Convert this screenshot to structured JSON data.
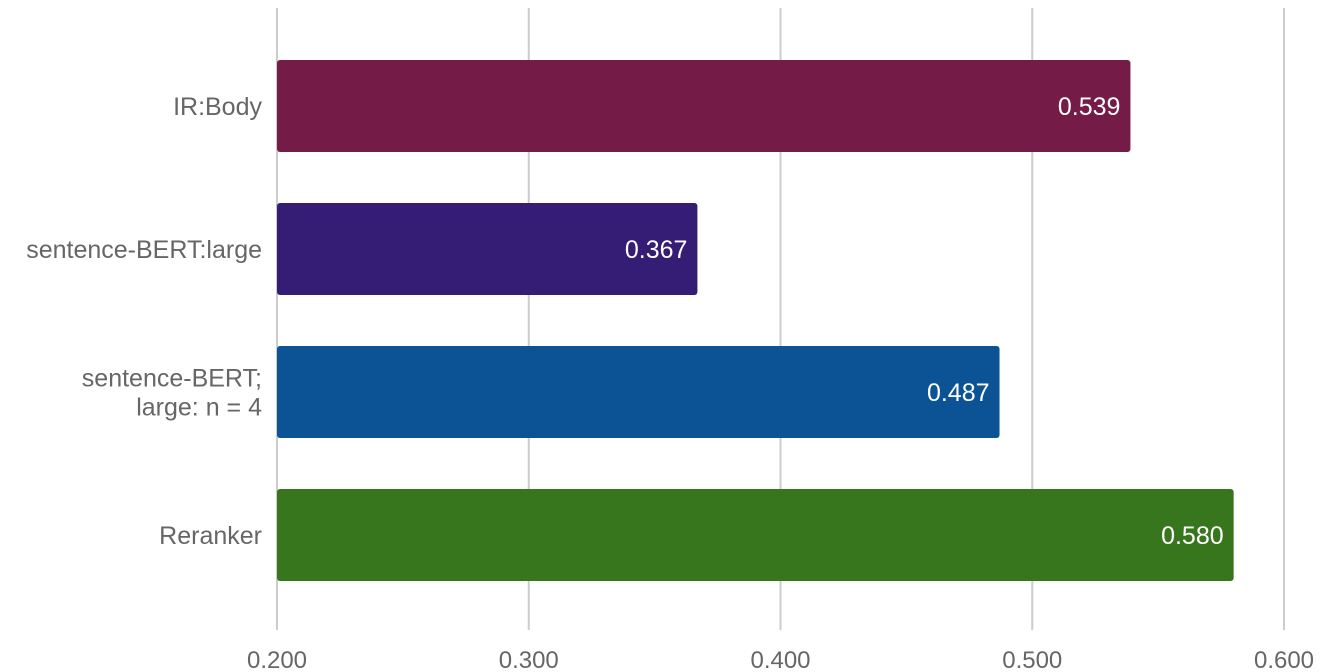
{
  "chart_data": {
    "type": "bar",
    "orientation": "horizontal",
    "categories": [
      [
        "IR:Body"
      ],
      [
        "sentence-BERT:large"
      ],
      [
        "sentence-BERT;",
        "large: n = 4"
      ],
      [
        "Reranker"
      ]
    ],
    "values": [
      0.539,
      0.367,
      0.487,
      0.58
    ],
    "value_labels": [
      "0.539",
      "0.367",
      "0.487",
      "0.580"
    ],
    "colors": [
      "#741b47",
      "#351c75",
      "#0b5394",
      "#38761d"
    ],
    "xlim": [
      0.2,
      0.6
    ],
    "x_ticks": [
      0.2,
      0.3,
      0.4,
      0.5,
      0.6
    ],
    "x_tick_labels": [
      "0.200",
      "0.300",
      "0.400",
      "0.500",
      "0.600"
    ],
    "grid": true,
    "title": "",
    "xlabel": "",
    "ylabel": ""
  }
}
